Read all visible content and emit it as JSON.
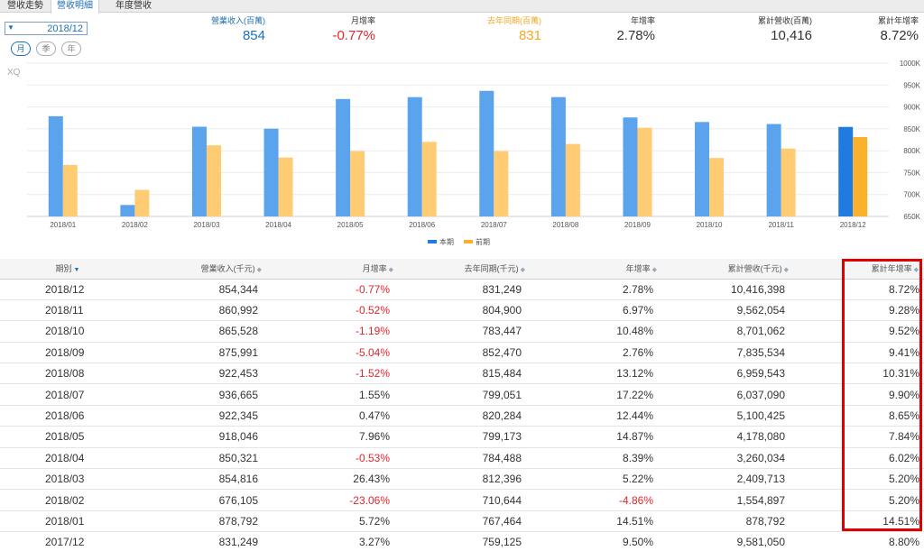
{
  "tabs": [
    "營收走勢",
    "營收明細",
    "年度營收"
  ],
  "active_tab": 1,
  "period": {
    "value": "2018/12",
    "arrow_icon": "▼"
  },
  "freq_buttons": [
    "月",
    "季",
    "年"
  ],
  "active_freq": 0,
  "metrics": [
    {
      "label": "營業收入(百萬)",
      "value": "854",
      "color": "#1f6fb5"
    },
    {
      "label": "月增率",
      "value": "-0.77%",
      "color": "#e2262c",
      "label_color": "#333"
    },
    {
      "label": "去年同期(百萬)",
      "value": "831",
      "color": "#f5a623"
    },
    {
      "label": "年增率",
      "value": "2.78%",
      "color": "#333"
    },
    {
      "label": "累計營收(百萬)",
      "value": "10,416",
      "color": "#333"
    },
    {
      "label": "累計年增率",
      "value": "8.72%",
      "color": "#333"
    }
  ],
  "chart_data": {
    "type": "bar",
    "watermark": "XQ",
    "categories": [
      "2018/01",
      "2018/02",
      "2018/03",
      "2018/04",
      "2018/05",
      "2018/06",
      "2018/07",
      "2018/08",
      "2018/09",
      "2018/10",
      "2018/11",
      "2018/12"
    ],
    "series": [
      {
        "name": "本期",
        "color": "#5ba3ec",
        "highlight_color": "#1f7be0",
        "values": [
          878792,
          676105,
          854816,
          850321,
          918046,
          922345,
          936665,
          922453,
          875991,
          865528,
          860992,
          854344
        ]
      },
      {
        "name": "前期",
        "color": "#ffcb73",
        "highlight_color": "#fcb12d",
        "values": [
          767464,
          710644,
          812396,
          784488,
          799173,
          820284,
          799051,
          815484,
          852470,
          783447,
          804900,
          831249
        ]
      }
    ],
    "ylim": [
      650000,
      1000000
    ],
    "yticks": [
      "650K",
      "700K",
      "750K",
      "800K",
      "850K",
      "900K",
      "950K",
      "1000K"
    ],
    "ytick_values": [
      650000,
      700000,
      750000,
      800000,
      850000,
      900000,
      950000,
      1000000
    ],
    "highlight_index": 11,
    "legend": "bottom-center"
  },
  "table": {
    "columns": [
      "期別",
      "營業收入(千元)",
      "月增率",
      "去年同期(千元)",
      "年增率",
      "累計營收(千元)",
      "累計年增率"
    ],
    "rows": [
      [
        "2018/12",
        "854,344",
        "-0.77%",
        "831,249",
        "2.78%",
        "10,416,398",
        "8.72%"
      ],
      [
        "2018/11",
        "860,992",
        "-0.52%",
        "804,900",
        "6.97%",
        "9,562,054",
        "9.28%"
      ],
      [
        "2018/10",
        "865,528",
        "-1.19%",
        "783,447",
        "10.48%",
        "8,701,062",
        "9.52%"
      ],
      [
        "2018/09",
        "875,991",
        "-5.04%",
        "852,470",
        "2.76%",
        "7,835,534",
        "9.41%"
      ],
      [
        "2018/08",
        "922,453",
        "-1.52%",
        "815,484",
        "13.12%",
        "6,959,543",
        "10.31%"
      ],
      [
        "2018/07",
        "936,665",
        "1.55%",
        "799,051",
        "17.22%",
        "6,037,090",
        "9.90%"
      ],
      [
        "2018/06",
        "922,345",
        "0.47%",
        "820,284",
        "12.44%",
        "5,100,425",
        "8.65%"
      ],
      [
        "2018/05",
        "918,046",
        "7.96%",
        "799,173",
        "14.87%",
        "4,178,080",
        "7.84%"
      ],
      [
        "2018/04",
        "850,321",
        "-0.53%",
        "784,488",
        "8.39%",
        "3,260,034",
        "6.02%"
      ],
      [
        "2018/03",
        "854,816",
        "26.43%",
        "812,396",
        "5.22%",
        "2,409,713",
        "5.20%"
      ],
      [
        "2018/02",
        "676,105",
        "-23.06%",
        "710,644",
        "-4.86%",
        "1,554,897",
        "5.20%"
      ],
      [
        "2018/01",
        "878,792",
        "5.72%",
        "767,464",
        "14.51%",
        "878,792",
        "14.51%"
      ],
      [
        "2017/12",
        "831,249",
        "3.27%",
        "759,125",
        "9.50%",
        "9,581,050",
        "8.80%"
      ]
    ]
  },
  "colors": {
    "accent": "#1f6fb5",
    "negative": "#e2262c",
    "highlight_box": "#e00000"
  }
}
